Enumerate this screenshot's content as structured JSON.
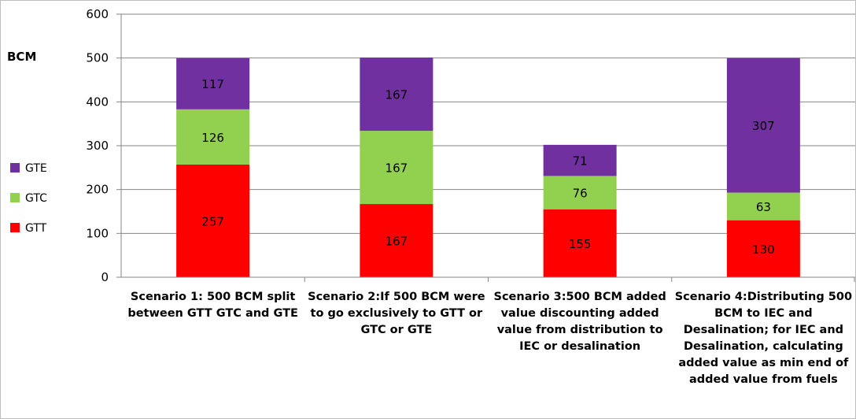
{
  "chart_data": {
    "type": "bar",
    "stacked": true,
    "ylabel": "BCM",
    "ylim": [
      0,
      600
    ],
    "yticks": [
      0,
      100,
      200,
      300,
      400,
      500,
      600
    ],
    "grid": true,
    "legend_position": "left",
    "categories": [
      "Scenario 1: 500 BCM split between GTT GTC and GTE",
      "Scenario 2:If 500 BCM were to go exclusively to GTT or GTC or GTE",
      "Scenario 3:500 BCM added value discounting added value from distribution to IEC or desalination",
      "Scenario 4:Distributing 500 BCM to IEC and Desalination; for IEC and Desalination, calculating added value as min end of added value from fuels"
    ],
    "series": [
      {
        "name": "GTT",
        "color": "#ff0000",
        "values": [
          257,
          167,
          155,
          130
        ]
      },
      {
        "name": "GTC",
        "color": "#92d050",
        "values": [
          126,
          167,
          76,
          63
        ]
      },
      {
        "name": "GTE",
        "color": "#7030a0",
        "values": [
          117,
          167,
          71,
          307
        ]
      }
    ]
  }
}
